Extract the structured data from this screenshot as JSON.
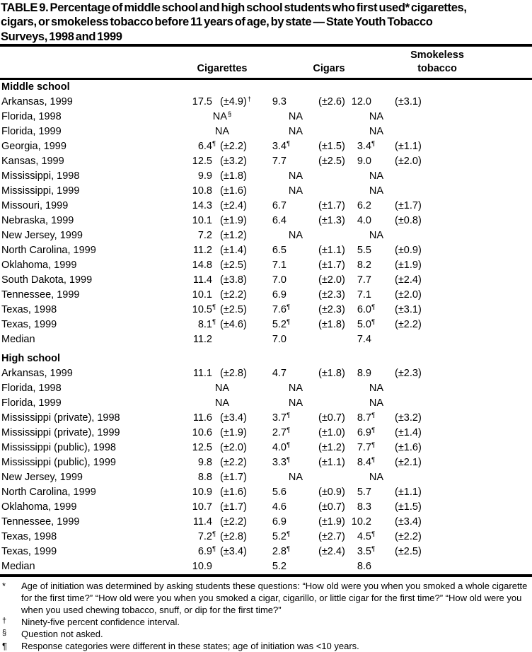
{
  "title_lines": [
    "TABLE 9. Percentage of middle school and high school students who first used* cigarettes,",
    "cigars, or smokeless tobacco before 11 years of age, by state — State Youth Tobacco",
    "Surveys, 1998 and 1999"
  ],
  "columns": [
    "Cigarettes",
    "Cigars",
    "Smokeless tobacco"
  ],
  "sections": [
    {
      "label": "Middle school",
      "rows": [
        {
          "state": "Arkansas, 1999",
          "cells": [
            {
              "v": "17.5",
              "ci": "(±4.9)",
              "cis": "†"
            },
            {
              "v": "9.3",
              "ci": "(±2.6)"
            },
            {
              "v": "12.0",
              "ci": "(±3.1)"
            }
          ]
        },
        {
          "state": "Florida, 1998",
          "cells": [
            {
              "na": "NA",
              "s": "§"
            },
            {
              "na": "NA"
            },
            {
              "na": "NA"
            }
          ]
        },
        {
          "state": "Florida, 1999",
          "cells": [
            {
              "na": "NA"
            },
            {
              "na": "NA"
            },
            {
              "na": "NA"
            }
          ]
        },
        {
          "state": "Georgia, 1999",
          "cells": [
            {
              "v": "6.4",
              "vs": "¶",
              "ci": "(±2.2)"
            },
            {
              "v": "3.4",
              "vs": "¶",
              "ci": "(±1.5)"
            },
            {
              "v": "3.4",
              "vs": "¶",
              "ci": "(±1.1)"
            }
          ]
        },
        {
          "state": "Kansas, 1999",
          "cells": [
            {
              "v": "12.5",
              "ci": "(±3.2)"
            },
            {
              "v": "7.7",
              "ci": "(±2.5)"
            },
            {
              "v": "9.0",
              "ci": "(±2.0)"
            }
          ]
        },
        {
          "state": "Mississippi, 1998",
          "cells": [
            {
              "v": "9.9",
              "ci": "(±1.8)"
            },
            {
              "na": "NA"
            },
            {
              "na": "NA"
            }
          ]
        },
        {
          "state": "Mississippi, 1999",
          "cells": [
            {
              "v": "10.8",
              "ci": "(±1.6)"
            },
            {
              "na": "NA"
            },
            {
              "na": "NA"
            }
          ]
        },
        {
          "state": "Missouri, 1999",
          "cells": [
            {
              "v": "14.3",
              "ci": "(±2.4)"
            },
            {
              "v": "6.7",
              "ci": "(±1.7)"
            },
            {
              "v": "6.2",
              "ci": "(±1.7)"
            }
          ]
        },
        {
          "state": "Nebraska, 1999",
          "cells": [
            {
              "v": "10.1",
              "ci": "(±1.9)"
            },
            {
              "v": "6.4",
              "ci": "(±1.3)"
            },
            {
              "v": "4.0",
              "ci": "(±0.8)"
            }
          ]
        },
        {
          "state": "New Jersey, 1999",
          "cells": [
            {
              "v": "7.2",
              "ci": "(±1.2)"
            },
            {
              "na": "NA"
            },
            {
              "na": "NA"
            }
          ]
        },
        {
          "state": "North Carolina, 1999",
          "cells": [
            {
              "v": "11.2",
              "ci": "(±1.4)"
            },
            {
              "v": "6.5",
              "ci": "(±1.1)"
            },
            {
              "v": "5.5",
              "ci": "(±0.9)"
            }
          ]
        },
        {
          "state": "Oklahoma, 1999",
          "cells": [
            {
              "v": "14.8",
              "ci": "(±2.5)"
            },
            {
              "v": "7.1",
              "ci": "(±1.7)"
            },
            {
              "v": "8.2",
              "ci": "(±1.9)"
            }
          ]
        },
        {
          "state": "South Dakota, 1999",
          "cells": [
            {
              "v": "11.4",
              "ci": "(±3.8)"
            },
            {
              "v": "7.0",
              "ci": "(±2.0)"
            },
            {
              "v": "7.7",
              "ci": "(±2.4)"
            }
          ]
        },
        {
          "state": "Tennessee, 1999",
          "cells": [
            {
              "v": "10.1",
              "ci": "(±2.2)"
            },
            {
              "v": "6.9",
              "ci": "(±2.3)"
            },
            {
              "v": "7.1",
              "ci": "(±2.0)"
            }
          ]
        },
        {
          "state": "Texas, 1998",
          "cells": [
            {
              "v": "10.5",
              "vs": "¶",
              "ci": "(±2.5)"
            },
            {
              "v": "7.6",
              "vs": "¶",
              "ci": "(±2.3)"
            },
            {
              "v": "6.0",
              "vs": "¶",
              "ci": "(±3.1)"
            }
          ]
        },
        {
          "state": "Texas, 1999",
          "cells": [
            {
              "v": "8.1",
              "vs": "¶",
              "ci": "(±4.6)"
            },
            {
              "v": "5.2",
              "vs": "¶",
              "ci": "(±1.8)"
            },
            {
              "v": "5.0",
              "vs": "¶",
              "ci": "(±2.2)"
            }
          ]
        },
        {
          "state": "Median",
          "cells": [
            {
              "v": "11.2"
            },
            {
              "v": "7.0"
            },
            {
              "v": "7.4"
            }
          ]
        }
      ]
    },
    {
      "label": "High school",
      "rows": [
        {
          "state": "Arkansas, 1999",
          "cells": [
            {
              "v": "11.1",
              "ci": "(±2.8)"
            },
            {
              "v": "4.7",
              "ci": "(±1.8)"
            },
            {
              "v": "8.9",
              "ci": "(±2.3)"
            }
          ]
        },
        {
          "state": "Florida, 1998",
          "cells": [
            {
              "na": "NA"
            },
            {
              "na": "NA"
            },
            {
              "na": "NA"
            }
          ]
        },
        {
          "state": "Florida, 1999",
          "cells": [
            {
              "na": "NA"
            },
            {
              "na": "NA"
            },
            {
              "na": "NA"
            }
          ]
        },
        {
          "state": "Mississippi (private), 1998",
          "cells": [
            {
              "v": "11.6",
              "ci": "(±3.4)"
            },
            {
              "v": "3.7",
              "vs": "¶",
              "ci": "(±0.7)"
            },
            {
              "v": "8.7",
              "vs": "¶",
              "ci": "(±3.2)"
            }
          ]
        },
        {
          "state": "Mississippi (private), 1999",
          "cells": [
            {
              "v": "10.6",
              "ci": "(±1.9)"
            },
            {
              "v": "2.7",
              "vs": "¶",
              "ci": "(±1.0)"
            },
            {
              "v": "6.9",
              "vs": "¶",
              "ci": "(±1.4)"
            }
          ]
        },
        {
          "state": "Mississippi (public), 1998",
          "cells": [
            {
              "v": "12.5",
              "ci": "(±2.0)"
            },
            {
              "v": "4.0",
              "vs": "¶",
              "ci": "(±1.2)"
            },
            {
              "v": "7.7",
              "vs": "¶",
              "ci": "(±1.6)"
            }
          ]
        },
        {
          "state": "Mississippi (public), 1999",
          "cells": [
            {
              "v": "9.8",
              "ci": "(±2.2)"
            },
            {
              "v": "3.3",
              "vs": "¶",
              "ci": "(±1.1)"
            },
            {
              "v": "8.4",
              "vs": "¶",
              "ci": "(±2.1)"
            }
          ]
        },
        {
          "state": "New Jersey, 1999",
          "cells": [
            {
              "v": "8.8",
              "ci": "(±1.7)"
            },
            {
              "na": "NA"
            },
            {
              "na": "NA"
            }
          ]
        },
        {
          "state": "North Carolina, 1999",
          "cells": [
            {
              "v": "10.9",
              "ci": "(±1.6)"
            },
            {
              "v": "5.6",
              "ci": "(±0.9)"
            },
            {
              "v": "5.7",
              "ci": "(±1.1)"
            }
          ]
        },
        {
          "state": "Oklahoma, 1999",
          "cells": [
            {
              "v": "10.7",
              "ci": "(±1.7)"
            },
            {
              "v": "4.6",
              "ci": "(±0.7)"
            },
            {
              "v": "8.3",
              "ci": "(±1.5)"
            }
          ]
        },
        {
          "state": "Tennessee, 1999",
          "cells": [
            {
              "v": "11.4",
              "ci": "(±2.2)"
            },
            {
              "v": "6.9",
              "ci": "(±1.9)"
            },
            {
              "v": "10.2",
              "ci": "(±3.4)"
            }
          ]
        },
        {
          "state": "Texas, 1998",
          "cells": [
            {
              "v": "7.2",
              "vs": "¶",
              "ci": "(±2.8)"
            },
            {
              "v": "5.2",
              "vs": "¶",
              "ci": "(±2.7)"
            },
            {
              "v": "4.5",
              "vs": "¶",
              "ci": "(±2.2)"
            }
          ]
        },
        {
          "state": "Texas, 1999",
          "cells": [
            {
              "v": "6.9",
              "vs": "¶",
              "ci": "(±3.4)"
            },
            {
              "v": "2.8",
              "vs": "¶",
              "ci": "(±2.4)"
            },
            {
              "v": "3.5",
              "vs": "¶",
              "ci": "(±2.5)"
            }
          ]
        },
        {
          "state": "Median",
          "cells": [
            {
              "v": "10.9"
            },
            {
              "v": "5.2"
            },
            {
              "v": "8.6"
            }
          ]
        }
      ]
    }
  ],
  "footnotes": [
    {
      "mark": "*",
      "text": "Age of initiation was determined by asking students these questions: “How old were you when you smoked a whole cigarette for the first time?” “How old were you when you smoked a cigar, cigarillo, or little cigar for the first time?” “How old were you when you used chewing tobacco, snuff, or dip for the first time?”"
    },
    {
      "mark": "†",
      "text": "Ninety-five percent confidence interval."
    },
    {
      "mark": "§",
      "text": "Question not asked."
    },
    {
      "mark": "¶",
      "text": "Response categories were different in these states; age of initiation was <10 years."
    }
  ],
  "colors": {
    "text": "#000000",
    "background": "#ffffff"
  }
}
